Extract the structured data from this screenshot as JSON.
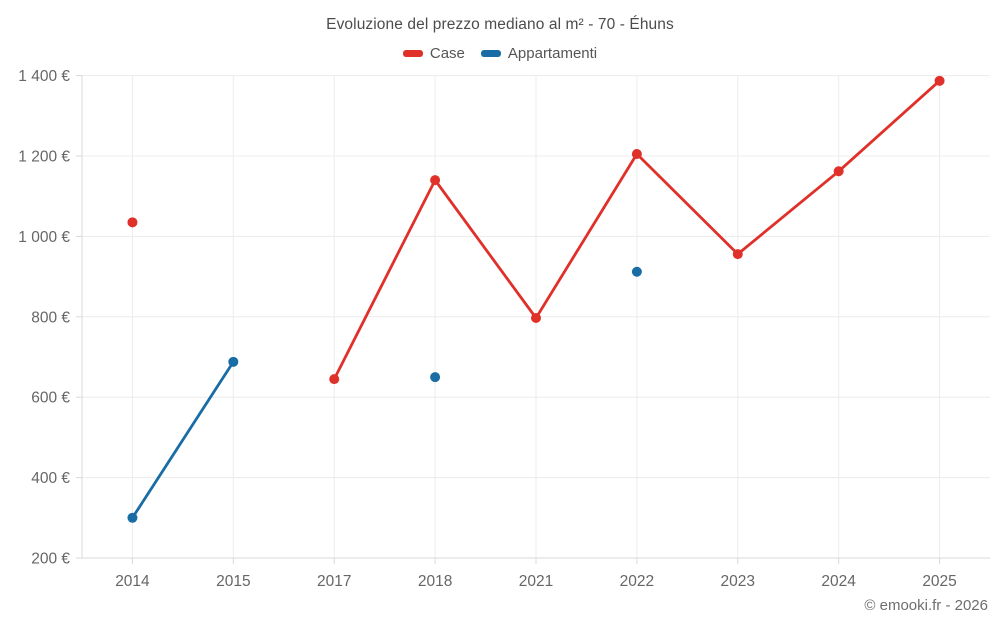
{
  "title": "Evoluzione del prezzo mediano al m² - 70 - Éhuns",
  "attribution": "© emooki.fr - 2026",
  "styles": {
    "grid_color": "#ececec",
    "axis_color": "#d8d8d8",
    "tick_color": "#d8d8d8",
    "tick_label_color": "#666666",
    "title_color": "#4c4c4c",
    "legend_label_color": "#555555",
    "background_color": "#ffffff"
  },
  "chart_data": {
    "type": "line",
    "title": "Evoluzione del prezzo mediano al m² - 70 - Éhuns",
    "xlabel": "",
    "ylabel": "",
    "categories": [
      "2014",
      "2015",
      "2017",
      "2018",
      "2021",
      "2022",
      "2023",
      "2024",
      "2025"
    ],
    "series": [
      {
        "name": "Case",
        "color": "#e0302a",
        "values": [
          1035,
          null,
          645,
          1140,
          797,
          1205,
          956,
          1162,
          1387
        ]
      },
      {
        "name": "Appartamenti",
        "color": "#1a6da4",
        "values": [
          300,
          688,
          null,
          650,
          null,
          912,
          null,
          null,
          null
        ]
      }
    ],
    "yticks": [
      200,
      400,
      600,
      800,
      1000,
      1200,
      1400
    ],
    "ytick_labels": [
      "200 €",
      "400 €",
      "600 €",
      "800 €",
      "1 000 €",
      "1 200 €",
      "1 400 €"
    ],
    "ylim": [
      200,
      1400
    ],
    "grid": true,
    "legend_position": "top",
    "line_width": 2.8,
    "marker_radius": 5
  }
}
